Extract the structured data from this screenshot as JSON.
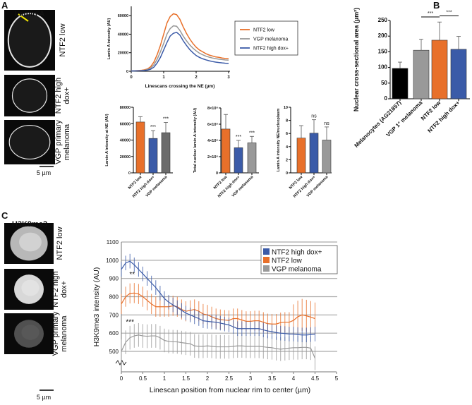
{
  "panel_labels": {
    "a": "A",
    "b": "B",
    "c": "C"
  },
  "panel_a": {
    "stain": "Lamin A",
    "image_labels": [
      "NTF2 low",
      "NTF2 high dox+",
      "VGP primary melanoma"
    ],
    "image_label_lines": [
      [
        "NTF2 low"
      ],
      [
        "NTF2 high",
        "dox+"
      ],
      [
        "VGP primary",
        "melanoma"
      ]
    ],
    "scale_bar": "5 µm"
  },
  "panel_c": {
    "stain": "H3K9me3",
    "image_labels": [
      "NTF2 low",
      "NTF2 high dox+",
      "VGP primary melanoma"
    ],
    "image_label_lines": [
      [
        "NTF2 low"
      ],
      [
        "NTF2 high",
        "dox+"
      ],
      [
        "VGP primary",
        "melanoma"
      ]
    ],
    "scale_bar": "5 µm"
  },
  "colors": {
    "orange": "#e8702a",
    "blue": "#3b5ba8",
    "gray": "#999999",
    "dark_gray": "#6b6b6b",
    "black": "#000000"
  },
  "chart_data": [
    {
      "id": "a_linescan",
      "type": "line",
      "xlabel": "Linescans crossing the NE (µm)",
      "ylabel": "Lamin A intensity (AU)",
      "xlim": [
        0,
        3
      ],
      "ylim": [
        0,
        70000
      ],
      "xticks": [
        0,
        1,
        2,
        3
      ],
      "xtick_labels": [
        "0",
        "1",
        "2",
        "3"
      ],
      "yticks": [
        0,
        20000,
        40000,
        60000
      ],
      "ytick_labels": [
        "0",
        "20000",
        "40000",
        "60000"
      ],
      "legend": "right",
      "x": [
        0,
        0.1,
        0.2,
        0.3,
        0.4,
        0.5,
        0.6,
        0.7,
        0.8,
        0.9,
        1.0,
        1.1,
        1.2,
        1.3,
        1.4,
        1.5,
        1.6,
        1.7,
        1.8,
        1.9,
        2.0,
        2.1,
        2.2,
        2.3,
        2.4,
        2.5,
        2.6,
        2.7,
        2.8,
        2.9,
        3.0
      ],
      "series": [
        {
          "name": "NTF2 low",
          "color": "#e8702a",
          "values": [
            500,
            600,
            800,
            1000,
            1500,
            2500,
            5000,
            10000,
            18000,
            28000,
            40000,
            52000,
            59000,
            62000,
            61000,
            56000,
            48000,
            41000,
            35000,
            30000,
            26000,
            23000,
            21000,
            19000,
            17500,
            16500,
            15500,
            15000,
            14300,
            13800,
            13500
          ]
        },
        {
          "name": "VGP melanoma",
          "color": "#999999",
          "values": [
            400,
            500,
            600,
            800,
            1100,
            1800,
            3500,
            7000,
            13000,
            21000,
            30000,
            40000,
            46000,
            49000,
            48500,
            44000,
            38000,
            33000,
            28500,
            25000,
            22000,
            19500,
            17800,
            16300,
            15200,
            14300,
            13600,
            13000,
            12600,
            12200,
            12000
          ]
        },
        {
          "name": "NTF2 high dox+",
          "color": "#3b5ba8",
          "values": [
            300,
            400,
            500,
            600,
            800,
            1200,
            2200,
            4500,
            9000,
            15000,
            23000,
            31000,
            38000,
            41000,
            42000,
            39000,
            33000,
            28000,
            23500,
            20000,
            17000,
            15000,
            13500,
            12300,
            11300,
            10500,
            9900,
            9400,
            9000,
            8700,
            8500
          ]
        }
      ]
    },
    {
      "id": "a_bar_ne",
      "type": "bar",
      "ylabel": "Lamin A intensity at NE (AU)",
      "ylim": [
        0,
        80000
      ],
      "yticks": [
        0,
        20000,
        40000,
        60000,
        80000
      ],
      "ytick_labels": [
        "0",
        "20000",
        "40000",
        "60000",
        "80000"
      ],
      "categories": [
        "NTF2 low",
        "NTF2 high dox+",
        "VGP melanoma"
      ],
      "values": [
        62000,
        42000,
        49000
      ],
      "errors": [
        6500,
        9500,
        12500
      ],
      "annotations": [
        "",
        "***",
        "***"
      ],
      "bar_colors": [
        "#e8702a",
        "#3b5ba8",
        "#6b6b6b"
      ]
    },
    {
      "id": "a_bar_total",
      "type": "bar",
      "ylabel": "Total nuclear lamin A intensity (AU)",
      "ylim": [
        0,
        800000000
      ],
      "yticks": [
        0,
        200000000,
        400000000,
        600000000,
        800000000
      ],
      "ytick_labels": [
        "0",
        "2×10⁸",
        "4×10⁸",
        "6×10⁸",
        "8×10⁸"
      ],
      "categories": [
        "NTF2 low",
        "NTF2 high dox+",
        "VGP melanoma"
      ],
      "values": [
        540000000,
        310000000,
        370000000
      ],
      "errors": [
        180000000,
        90000000,
        80000000
      ],
      "annotations": [
        "",
        "***",
        "***"
      ],
      "bar_colors": [
        "#e8702a",
        "#3b5ba8",
        "#999999"
      ]
    },
    {
      "id": "a_bar_ratio",
      "type": "bar",
      "ylabel": "Lamin A intensity NE/nucleoplasm",
      "ylim": [
        0,
        10
      ],
      "yticks": [
        0,
        2,
        4,
        6,
        8,
        10
      ],
      "ytick_labels": [
        "0",
        "2",
        "4",
        "6",
        "8",
        "10"
      ],
      "categories": [
        "NTF2 low",
        "NTF2 high dox+",
        "VGP melanoma"
      ],
      "values": [
        5.3,
        6.05,
        5.0
      ],
      "errors": [
        1.9,
        2.05,
        2.0
      ],
      "annotations": [
        "",
        "ns",
        "ns"
      ],
      "bar_colors": [
        "#e8702a",
        "#3b5ba8",
        "#999999"
      ]
    },
    {
      "id": "b_bar_area",
      "type": "bar",
      "ylabel": "Nuclear cross-sectional area (µm²)",
      "ylim": [
        0,
        250
      ],
      "yticks": [
        0,
        50,
        100,
        150,
        200,
        250
      ],
      "ytick_labels": [
        "0",
        "50",
        "100",
        "150",
        "200",
        "250"
      ],
      "categories": [
        "Melanocytes (AG21857)",
        "VGP 1° melanoma",
        "NTF2 low",
        "NTF2 high dox+"
      ],
      "values": [
        97,
        155,
        187,
        158
      ],
      "errors": [
        20,
        35,
        58,
        41
      ],
      "annotations": [],
      "significance": [
        {
          "from": 1,
          "to": 2,
          "label": "***"
        },
        {
          "from": 2,
          "to": 3,
          "label": "***"
        }
      ],
      "bar_colors": [
        "#000000",
        "#999999",
        "#e8702a",
        "#3b5ba8"
      ]
    },
    {
      "id": "c_linescan",
      "type": "line",
      "xlabel": "Linescan position from nuclear rim to center (µm)",
      "ylabel": "H3K9me3 intensity (AU)",
      "xlim": [
        0,
        5
      ],
      "ylim": [
        500,
        1100
      ],
      "axis_break": true,
      "grid": true,
      "xticks": [
        0,
        0.5,
        1,
        1.5,
        2,
        2.5,
        3,
        3.5,
        4,
        4.5,
        5
      ],
      "xtick_labels": [
        "0",
        "0.5",
        "1",
        "1.5",
        "2",
        "2.5",
        "3",
        "3.5",
        "4",
        "4.5",
        "5"
      ],
      "yticks": [
        500,
        600,
        700,
        800,
        900,
        1000,
        1100
      ],
      "ytick_labels": [
        "500",
        "600",
        "700",
        "800",
        "900",
        "1000",
        "1100"
      ],
      "legend": "top-right",
      "annotations": [
        {
          "text": "**",
          "x": 0.25,
          "y": 910,
          "color": "#3b5ba8"
        },
        {
          "text": "***",
          "x": 0.2,
          "y": 650,
          "color": "#3b5ba8"
        }
      ],
      "x": [
        0,
        0.1,
        0.2,
        0.3,
        0.4,
        0.5,
        0.6,
        0.7,
        0.8,
        0.9,
        1.0,
        1.1,
        1.2,
        1.3,
        1.4,
        1.5,
        1.6,
        1.7,
        1.8,
        1.9,
        2.0,
        2.1,
        2.2,
        2.3,
        2.4,
        2.5,
        2.6,
        2.7,
        2.8,
        2.9,
        3.0,
        3.1,
        3.2,
        3.3,
        3.4,
        3.5,
        3.6,
        3.7,
        3.8,
        3.9,
        4.0,
        4.1,
        4.2,
        4.3,
        4.4,
        4.5
      ],
      "series": [
        {
          "name": "NTF2 high dox+",
          "color": "#3b5ba8",
          "error": 40,
          "values": [
            950,
            985,
            995,
            975,
            950,
            925,
            900,
            875,
            850,
            820,
            790,
            770,
            755,
            740,
            725,
            710,
            700,
            690,
            680,
            668,
            665,
            662,
            660,
            655,
            650,
            645,
            635,
            625,
            625,
            625,
            625,
            625,
            625,
            618,
            612,
            608,
            603,
            600,
            598,
            595,
            595,
            592,
            590,
            590,
            592,
            595
          ]
        },
        {
          "name": "NTF2 low",
          "color": "#e8702a",
          "error": 55,
          "values": [
            760,
            800,
            818,
            820,
            815,
            800,
            780,
            760,
            745,
            745,
            745,
            745,
            750,
            745,
            730,
            720,
            725,
            730,
            720,
            705,
            700,
            690,
            680,
            675,
            672,
            670,
            680,
            680,
            672,
            665,
            665,
            668,
            668,
            660,
            652,
            650,
            650,
            658,
            660,
            660,
            670,
            690,
            700,
            695,
            688,
            680
          ]
        },
        {
          "name": "VGP melanoma",
          "color": "#999999",
          "error": 65,
          "values": [
            500,
            550,
            575,
            585,
            590,
            585,
            583,
            585,
            585,
            575,
            560,
            555,
            553,
            552,
            548,
            545,
            542,
            530,
            528,
            528,
            530,
            528,
            525,
            525,
            525,
            525,
            528,
            530,
            530,
            528,
            528,
            528,
            528,
            525,
            522,
            520,
            515,
            512,
            515,
            518,
            520,
            520,
            522,
            522,
            518,
            462
          ]
        }
      ]
    }
  ]
}
